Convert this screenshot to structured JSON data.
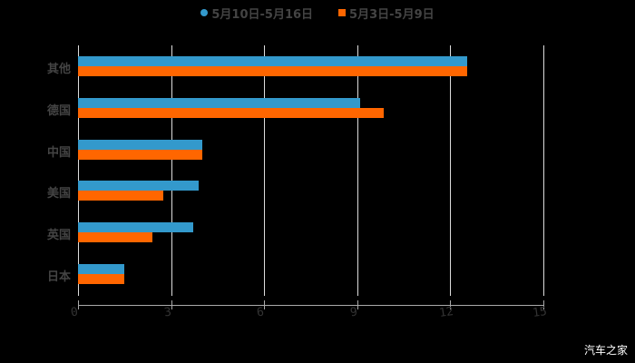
{
  "legend": [
    {
      "label": "5月10日-5月16日",
      "color": "#3399cc",
      "shape": "circle"
    },
    {
      "label": "5月3日-5月9日",
      "color": "#ff6600",
      "shape": "square"
    }
  ],
  "watermark": "汽车之家",
  "chart_data": {
    "type": "bar",
    "orientation": "horizontal",
    "title": "",
    "xlabel": "",
    "ylabel": "",
    "categories": [
      "其他",
      "德国",
      "中国",
      "美国",
      "英国",
      "日本"
    ],
    "series": [
      {
        "name": "5月10日-5月16日",
        "color": "#3399cc",
        "values": [
          12.55,
          9.1,
          4.0,
          3.9,
          3.7,
          1.5
        ]
      },
      {
        "name": "5月3日-5月9日",
        "color": "#ff6600",
        "values": [
          12.55,
          9.85,
          4.0,
          2.75,
          2.4,
          1.5
        ]
      }
    ],
    "xlim": [
      0,
      15
    ],
    "xticks": [
      "0",
      "3",
      "6",
      "9",
      "12",
      "15"
    ],
    "grid": true,
    "legend_position": "top"
  }
}
